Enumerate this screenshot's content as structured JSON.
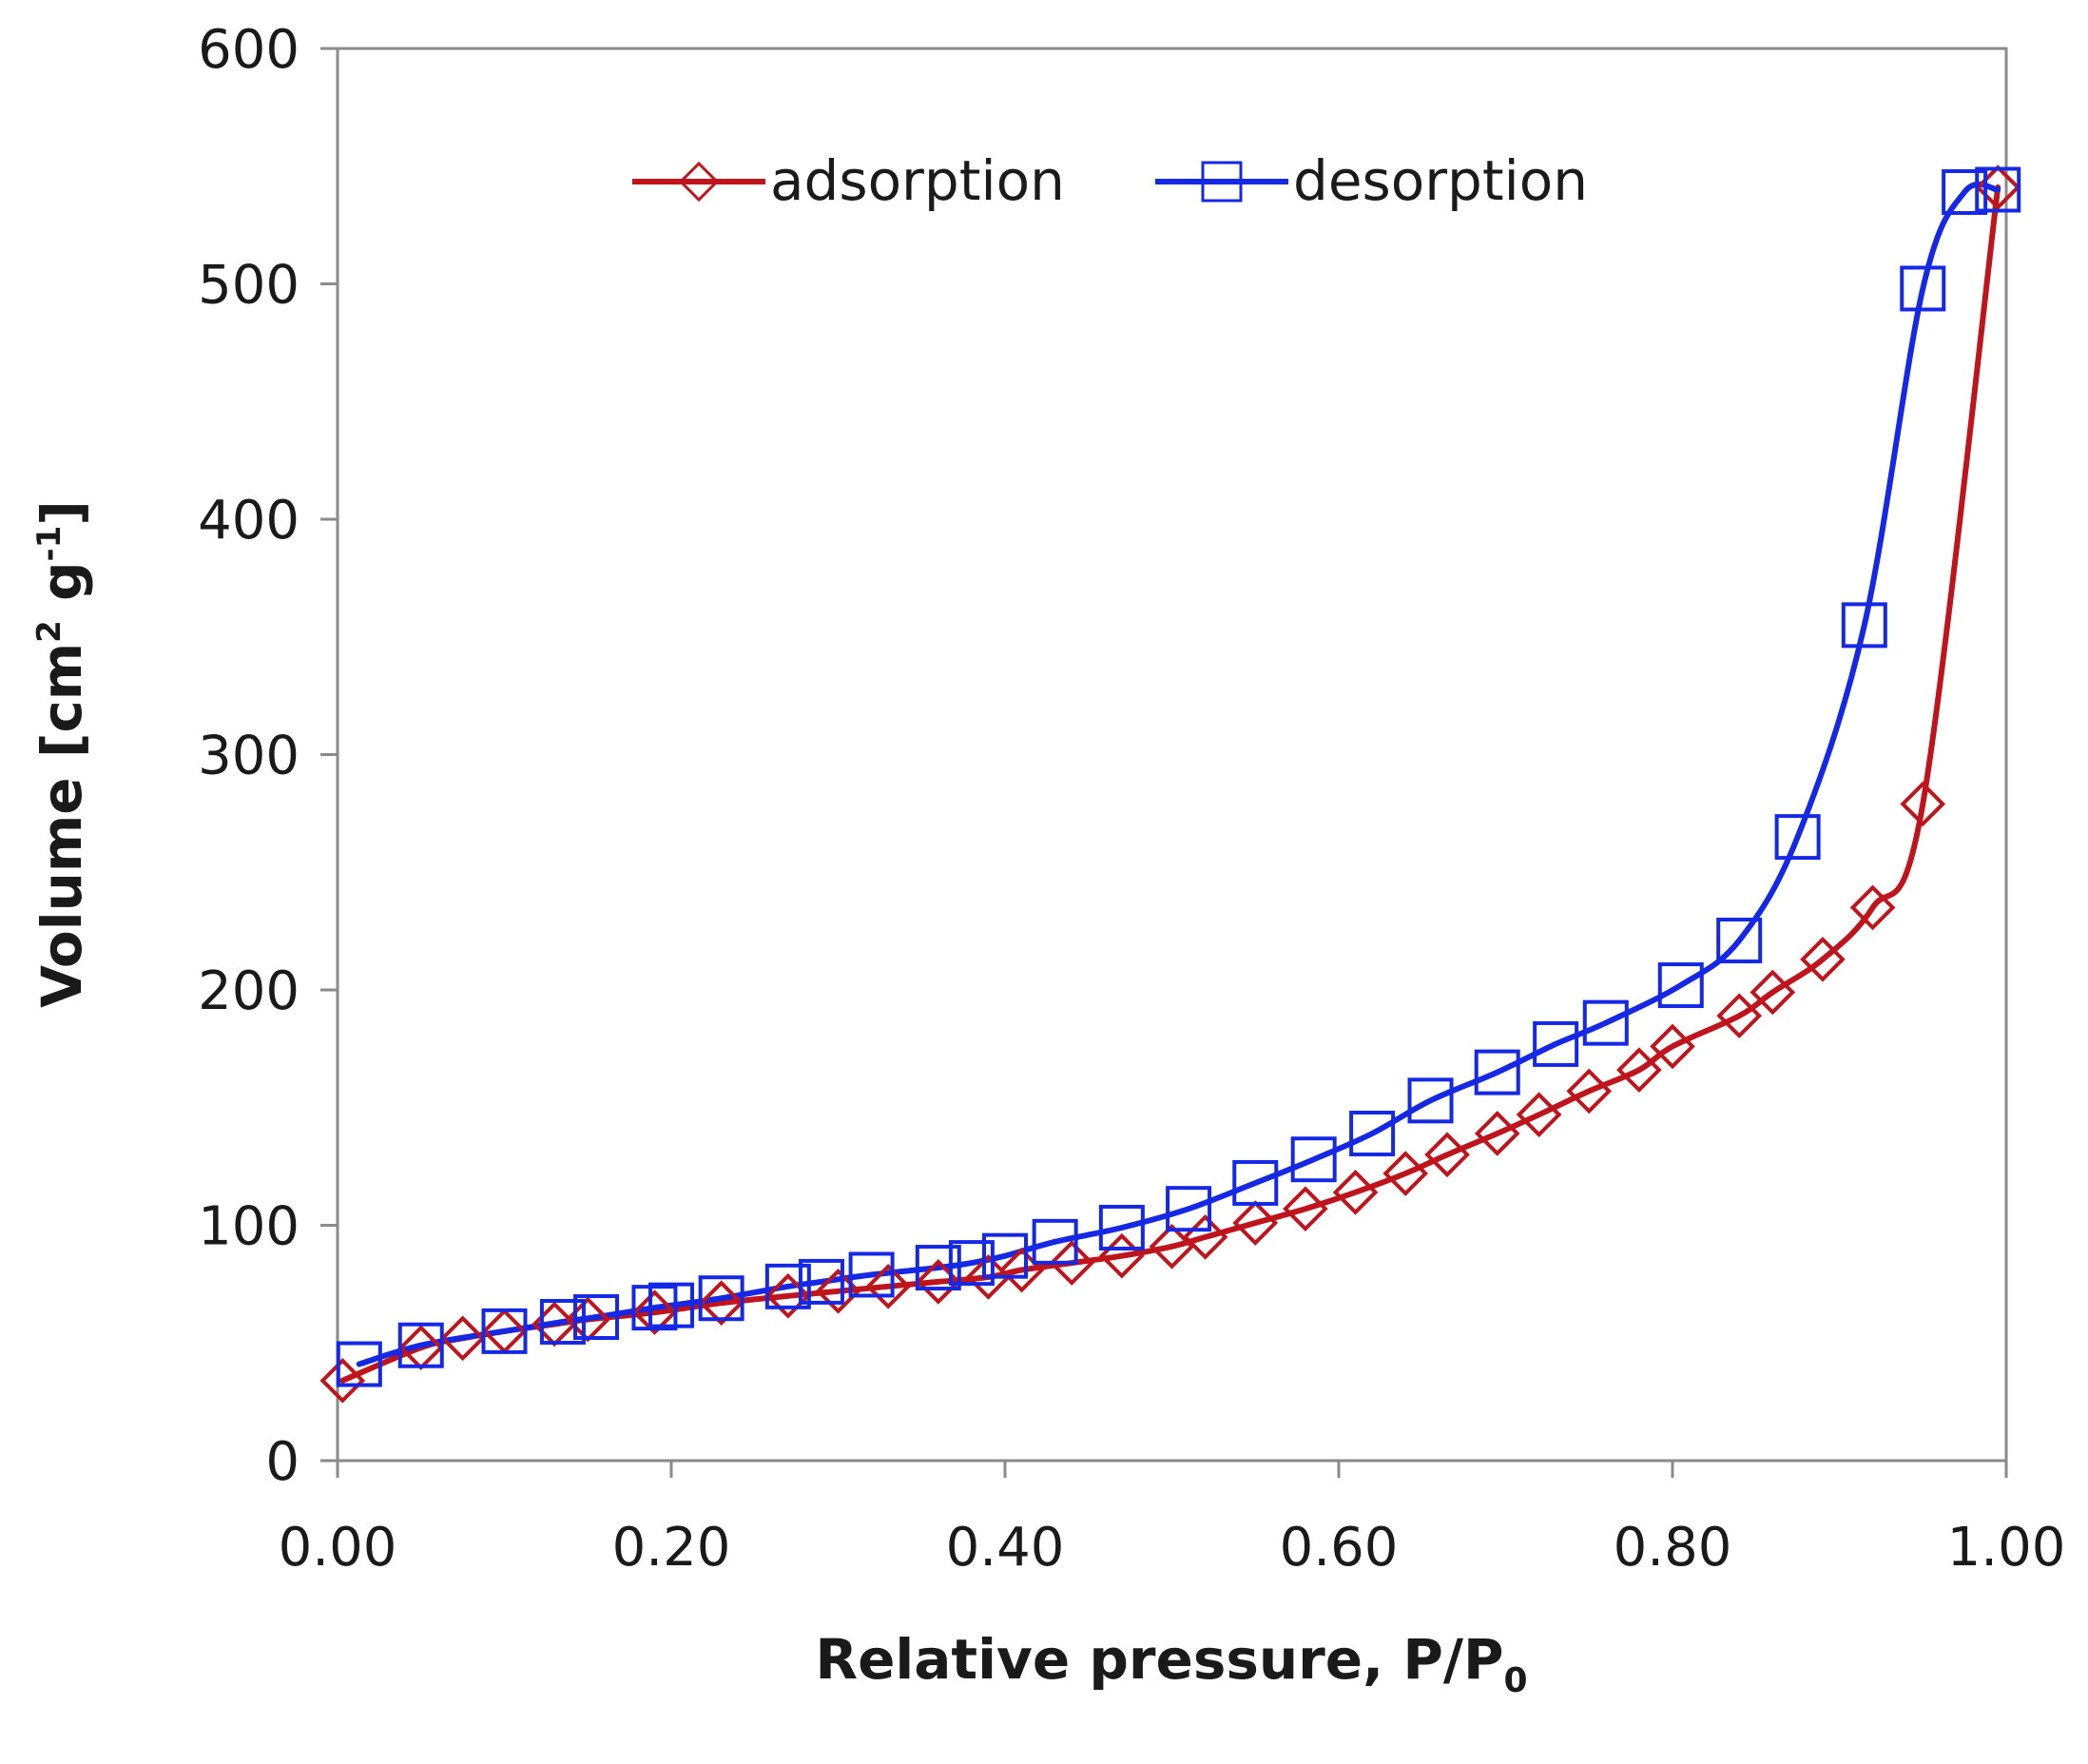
{
  "chart_data": {
    "type": "line",
    "title": "",
    "xlabel": "Relative pressure, P/P",
    "xlabel_sub": "0",
    "ylabel": "Volume [cm",
    "ylabel_sup1": "2",
    "ylabel_mid": " g",
    "ylabel_sup2": "-1",
    "ylabel_end": "]",
    "xlim": [
      0,
      1
    ],
    "ylim": [
      0,
      600
    ],
    "xticks": [
      0,
      0.2,
      0.4,
      0.6,
      0.8,
      1.0
    ],
    "xtick_labels": [
      "0.00",
      "0.20",
      "0.40",
      "0.60",
      "0.80",
      "1.00"
    ],
    "yticks": [
      0,
      100,
      200,
      300,
      400,
      500,
      600
    ],
    "ytick_labels": [
      "0",
      "100",
      "200",
      "300",
      "400",
      "500",
      "600"
    ],
    "legend_position": "top-center",
    "grid": false,
    "series": [
      {
        "name": "adsorption",
        "color": "#c0141c",
        "marker": "diamond",
        "x": [
          0.003,
          0.05,
          0.075,
          0.1,
          0.13,
          0.15,
          0.19,
          0.23,
          0.27,
          0.3,
          0.33,
          0.36,
          0.39,
          0.41,
          0.44,
          0.47,
          0.5,
          0.52,
          0.55,
          0.58,
          0.61,
          0.64,
          0.665,
          0.695,
          0.72,
          0.75,
          0.78,
          0.8,
          0.84,
          0.86,
          0.89,
          0.92,
          0.95,
          0.995
        ],
        "y": [
          34,
          48,
          52,
          55,
          58,
          60,
          63,
          67,
          70,
          72,
          74,
          76,
          78,
          81,
          84,
          87,
          91,
          95,
          101,
          107,
          114,
          122,
          130,
          139,
          147,
          157,
          166,
          176,
          189,
          199,
          213,
          235,
          279,
          541
        ]
      },
      {
        "name": "desorption",
        "color": "#1428e6",
        "marker": "square",
        "x": [
          0.013,
          0.05,
          0.1,
          0.135,
          0.155,
          0.19,
          0.2,
          0.23,
          0.27,
          0.29,
          0.32,
          0.36,
          0.38,
          0.4,
          0.43,
          0.47,
          0.51,
          0.55,
          0.585,
          0.62,
          0.655,
          0.695,
          0.73,
          0.76,
          0.805,
          0.84,
          0.875,
          0.915,
          0.95,
          0.975,
          0.995
        ],
        "y": [
          41,
          49,
          55,
          59,
          61,
          65,
          66,
          69,
          74,
          76,
          79,
          82,
          84,
          87,
          93,
          99,
          107,
          118,
          128,
          139,
          153,
          165,
          177,
          186,
          202,
          221,
          265,
          355,
          498,
          539,
          540
        ]
      }
    ]
  }
}
